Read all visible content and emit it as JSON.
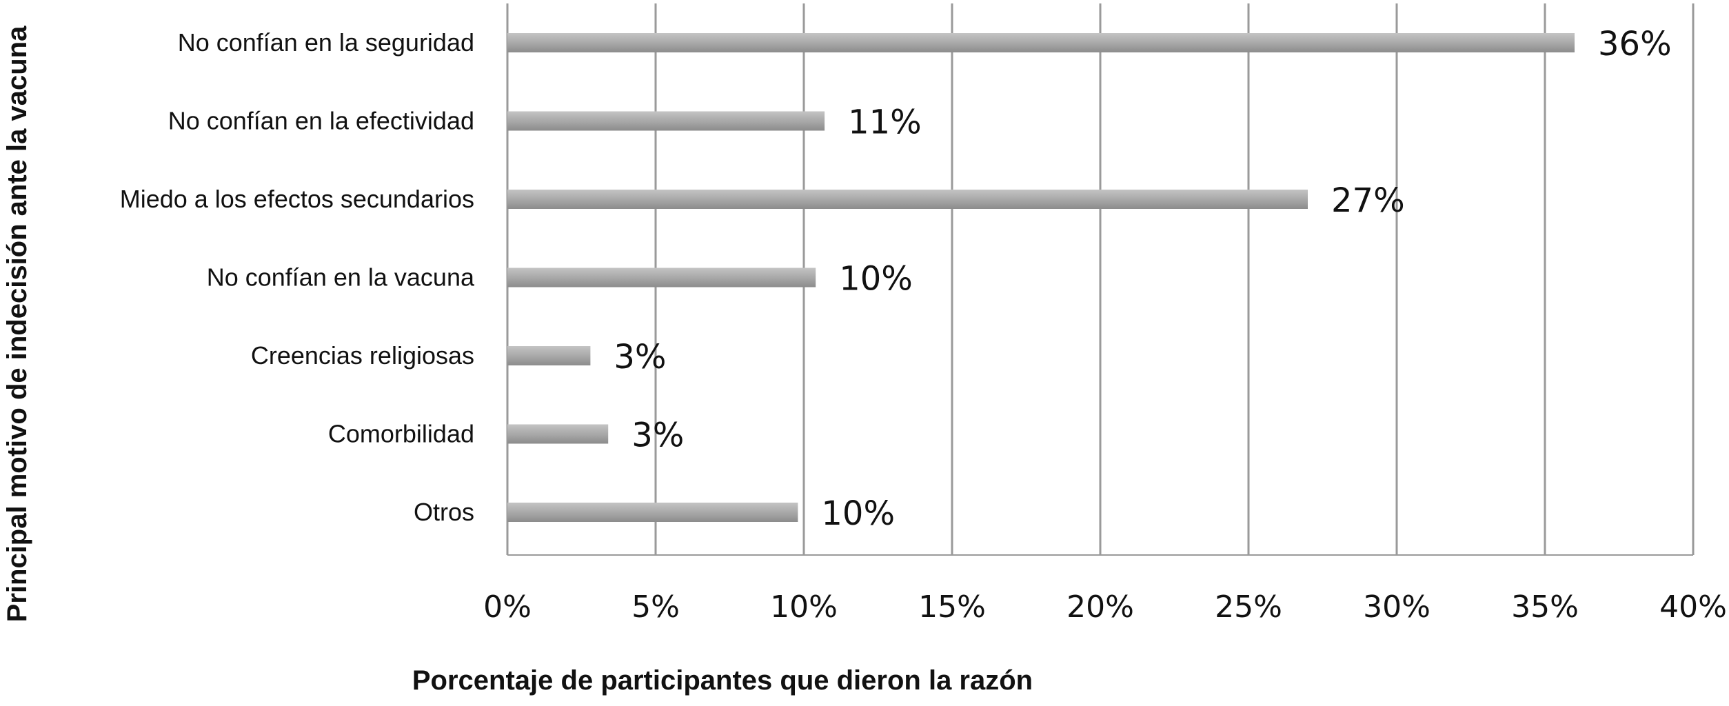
{
  "chart_data": {
    "type": "bar",
    "orientation": "horizontal",
    "categories": [
      "No confían en la seguridad",
      "No confían en la efectividad",
      "Miedo a los efectos secundarios",
      "No confían en la vacuna",
      "Creencias religiosas",
      "Comorbilidad",
      "Otros"
    ],
    "values": [
      36,
      10.7,
      27,
      10.4,
      2.8,
      3.4,
      9.8
    ],
    "data_labels": [
      "36%",
      "11%",
      "27%",
      "10%",
      "3%",
      "3%",
      "10%"
    ],
    "xlabel": "Porcentaje de participantes que dieron la razón",
    "ylabel": "Principal motivo de indecisión ante la vacuna",
    "xlim": [
      0,
      40
    ],
    "xticks": [
      0,
      5,
      10,
      15,
      20,
      25,
      30,
      35,
      40
    ],
    "xtick_labels": [
      "0%",
      "5%",
      "10%",
      "15%",
      "20%",
      "25%",
      "30%",
      "35%",
      "40%"
    ],
    "grid": "vertical",
    "legend": "none",
    "colors": {
      "bar": "#a6a6a6",
      "bar_highlight": "#c4c4c4",
      "bar_shadow": "#8c8c8c",
      "grid": "#9a9a9a",
      "text": "#111111"
    }
  }
}
